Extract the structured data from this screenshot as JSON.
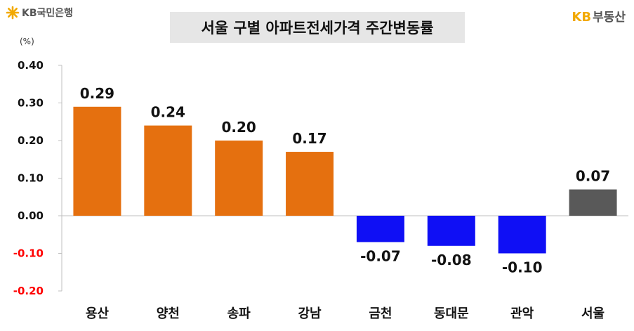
{
  "header": {
    "bank_logo_text": "KB국민은행",
    "brand_mark": "KB",
    "brand_name": "부동산"
  },
  "colors": {
    "positive": "#e5700f",
    "negative": "#0f0ff5",
    "total": "#595959",
    "negative_tick": "#ff0000",
    "star": "#f2a900"
  },
  "chart_data": {
    "type": "bar",
    "title": "서울 구별 아파트전세가격 주간변동률",
    "unit_label": "(%)",
    "categories": [
      "용산",
      "양천",
      "송파",
      "강남",
      "금천",
      "동대문",
      "관악",
      "서울"
    ],
    "values": [
      0.29,
      0.24,
      0.2,
      0.17,
      -0.07,
      -0.08,
      -0.1,
      0.07
    ],
    "value_labels": [
      "0.29",
      "0.24",
      "0.20",
      "0.17",
      "-0.07",
      "-0.08",
      "-0.10",
      "0.07"
    ],
    "ylim": [
      -0.2,
      0.4
    ],
    "yticks": [
      "0.40",
      "0.30",
      "0.20",
      "0.10",
      "0.00",
      "-0.10",
      "-0.20"
    ],
    "ytick_values": [
      0.4,
      0.3,
      0.2,
      0.1,
      0.0,
      -0.1,
      -0.2
    ],
    "grid": false,
    "legend": "none",
    "highlight_category": "서울"
  }
}
